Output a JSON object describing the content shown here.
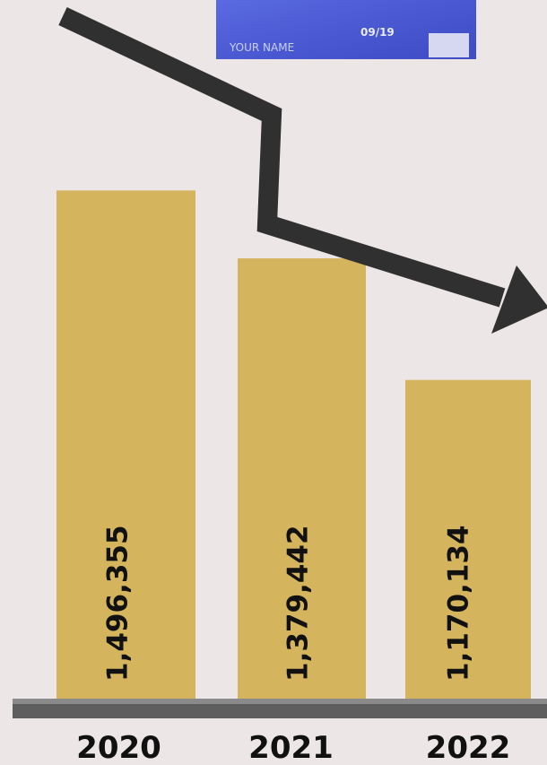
{
  "card": {
    "name": "YOUR NAME",
    "expiry": "09/19"
  },
  "chart_data": {
    "type": "bar",
    "categories": [
      "2020",
      "2021",
      "2022"
    ],
    "values": [
      1496355,
      1379442,
      1170134
    ],
    "value_labels": [
      "1,496,355",
      "1,379,442",
      "1,170,134"
    ],
    "color": "#d4b45c",
    "ylim": [
      620000,
      1500000
    ]
  }
}
